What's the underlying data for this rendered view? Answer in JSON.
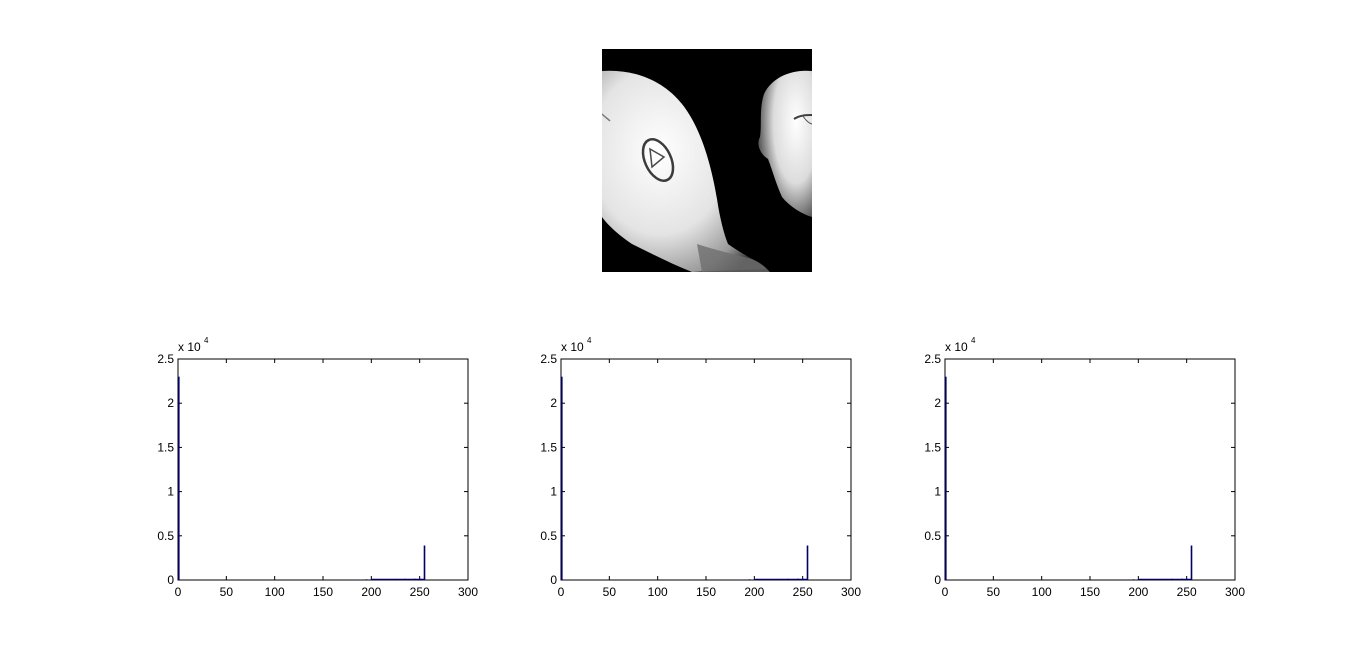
{
  "image": {
    "icon": "mri-head-rendering-image"
  },
  "colors": {
    "bar": "#000066",
    "axis": "#000000",
    "background": "#ffffff"
  },
  "chart_data": [
    {
      "type": "bar",
      "xlim": [
        0,
        300
      ],
      "ylim": [
        0,
        25000
      ],
      "xticks": [
        0,
        50,
        100,
        150,
        200,
        250,
        300
      ],
      "yticks": [
        0,
        5000,
        10000,
        15000,
        20000,
        25000
      ],
      "xtick_labels": [
        "0",
        "50",
        "100",
        "150",
        "200",
        "250",
        "300"
      ],
      "ytick_labels": [
        "0",
        "0.5",
        "1",
        "1.5",
        "2",
        "2.5"
      ],
      "y_exponent": {
        "base": "x 10",
        "power": "4"
      },
      "bars": [
        {
          "x": 0,
          "y": 23000
        },
        {
          "x": 180,
          "y": 60
        },
        {
          "x": 195,
          "y": 80
        },
        {
          "x": 205,
          "y": 100
        },
        {
          "x": 215,
          "y": 110
        },
        {
          "x": 225,
          "y": 120
        },
        {
          "x": 235,
          "y": 130
        },
        {
          "x": 245,
          "y": 140
        },
        {
          "x": 250,
          "y": 150
        },
        {
          "x": 255,
          "y": 3900
        }
      ]
    },
    {
      "type": "bar",
      "xlim": [
        0,
        300
      ],
      "ylim": [
        0,
        25000
      ],
      "xticks": [
        0,
        50,
        100,
        150,
        200,
        250,
        300
      ],
      "yticks": [
        0,
        5000,
        10000,
        15000,
        20000,
        25000
      ],
      "xtick_labels": [
        "0",
        "50",
        "100",
        "150",
        "200",
        "250",
        "300"
      ],
      "ytick_labels": [
        "0",
        "0.5",
        "1",
        "1.5",
        "2",
        "2.5"
      ],
      "y_exponent": {
        "base": "x 10",
        "power": "4"
      },
      "bars": [
        {
          "x": 0,
          "y": 23000
        },
        {
          "x": 185,
          "y": 60
        },
        {
          "x": 195,
          "y": 80
        },
        {
          "x": 205,
          "y": 100
        },
        {
          "x": 215,
          "y": 110
        },
        {
          "x": 225,
          "y": 120
        },
        {
          "x": 235,
          "y": 130
        },
        {
          "x": 245,
          "y": 140
        },
        {
          "x": 250,
          "y": 150
        },
        {
          "x": 255,
          "y": 3900
        }
      ]
    },
    {
      "type": "bar",
      "xlim": [
        0,
        300
      ],
      "ylim": [
        0,
        25000
      ],
      "xticks": [
        0,
        50,
        100,
        150,
        200,
        250,
        300
      ],
      "yticks": [
        0,
        5000,
        10000,
        15000,
        20000,
        25000
      ],
      "xtick_labels": [
        "0",
        "50",
        "100",
        "150",
        "200",
        "250",
        "300"
      ],
      "ytick_labels": [
        "0",
        "0.5",
        "1",
        "1.5",
        "2",
        "2.5"
      ],
      "y_exponent": {
        "base": "x 10",
        "power": "4"
      },
      "bars": [
        {
          "x": 0,
          "y": 23000
        },
        {
          "x": 185,
          "y": 60
        },
        {
          "x": 195,
          "y": 80
        },
        {
          "x": 205,
          "y": 100
        },
        {
          "x": 215,
          "y": 110
        },
        {
          "x": 225,
          "y": 120
        },
        {
          "x": 235,
          "y": 130
        },
        {
          "x": 245,
          "y": 140
        },
        {
          "x": 250,
          "y": 150
        },
        {
          "x": 255,
          "y": 3900
        }
      ]
    }
  ]
}
